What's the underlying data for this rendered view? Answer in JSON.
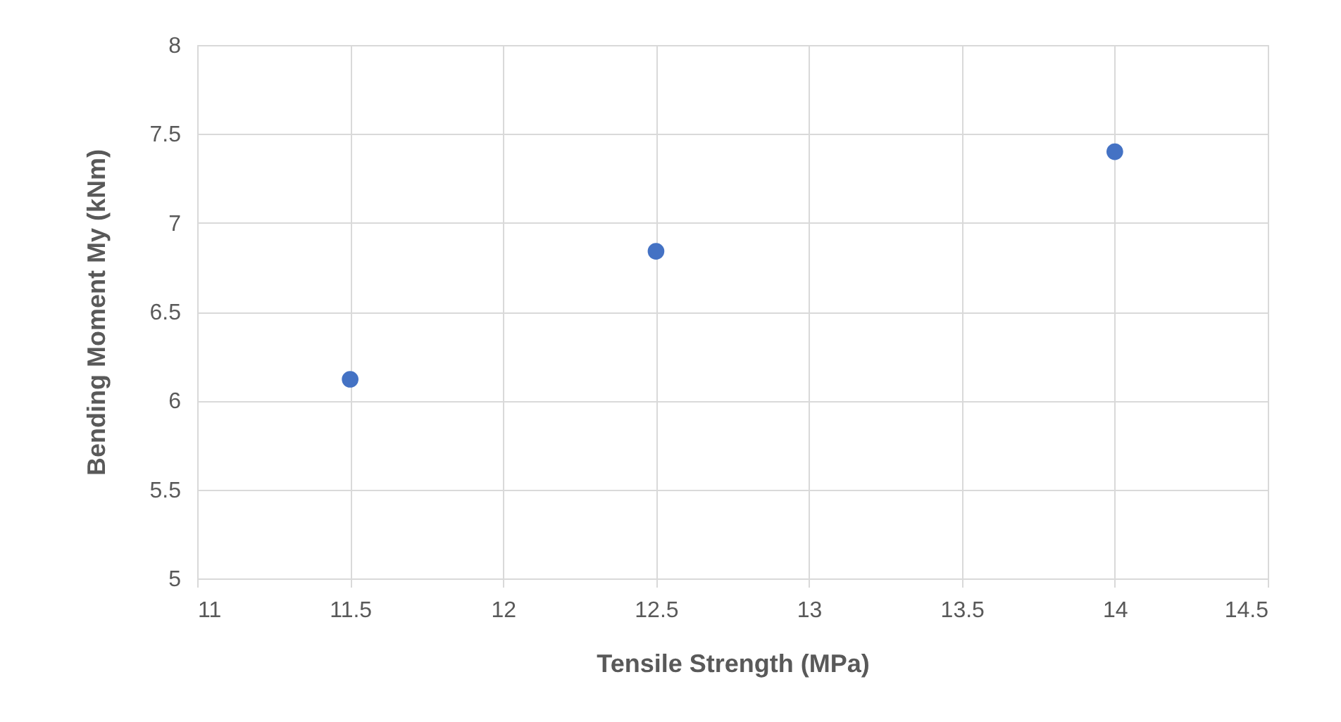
{
  "chart_data": {
    "type": "scatter",
    "xlabel": "Tensile Strength (MPa)",
    "ylabel": "Bending Moment My  (kNm)",
    "x": [
      11.5,
      12.5,
      14
    ],
    "series": [
      {
        "color": "#4472c4",
        "values": [
          6.12,
          6.84,
          7.4
        ]
      }
    ],
    "xlim": [
      11,
      14.5
    ],
    "xticks": [
      11,
      11.5,
      12,
      12.5,
      13,
      13.5,
      14,
      14.5
    ],
    "ylim": [
      5,
      8
    ],
    "yticks": [
      5,
      5.5,
      6,
      6.5,
      7,
      7.5,
      8
    ],
    "grid": true,
    "marker": "circle"
  }
}
